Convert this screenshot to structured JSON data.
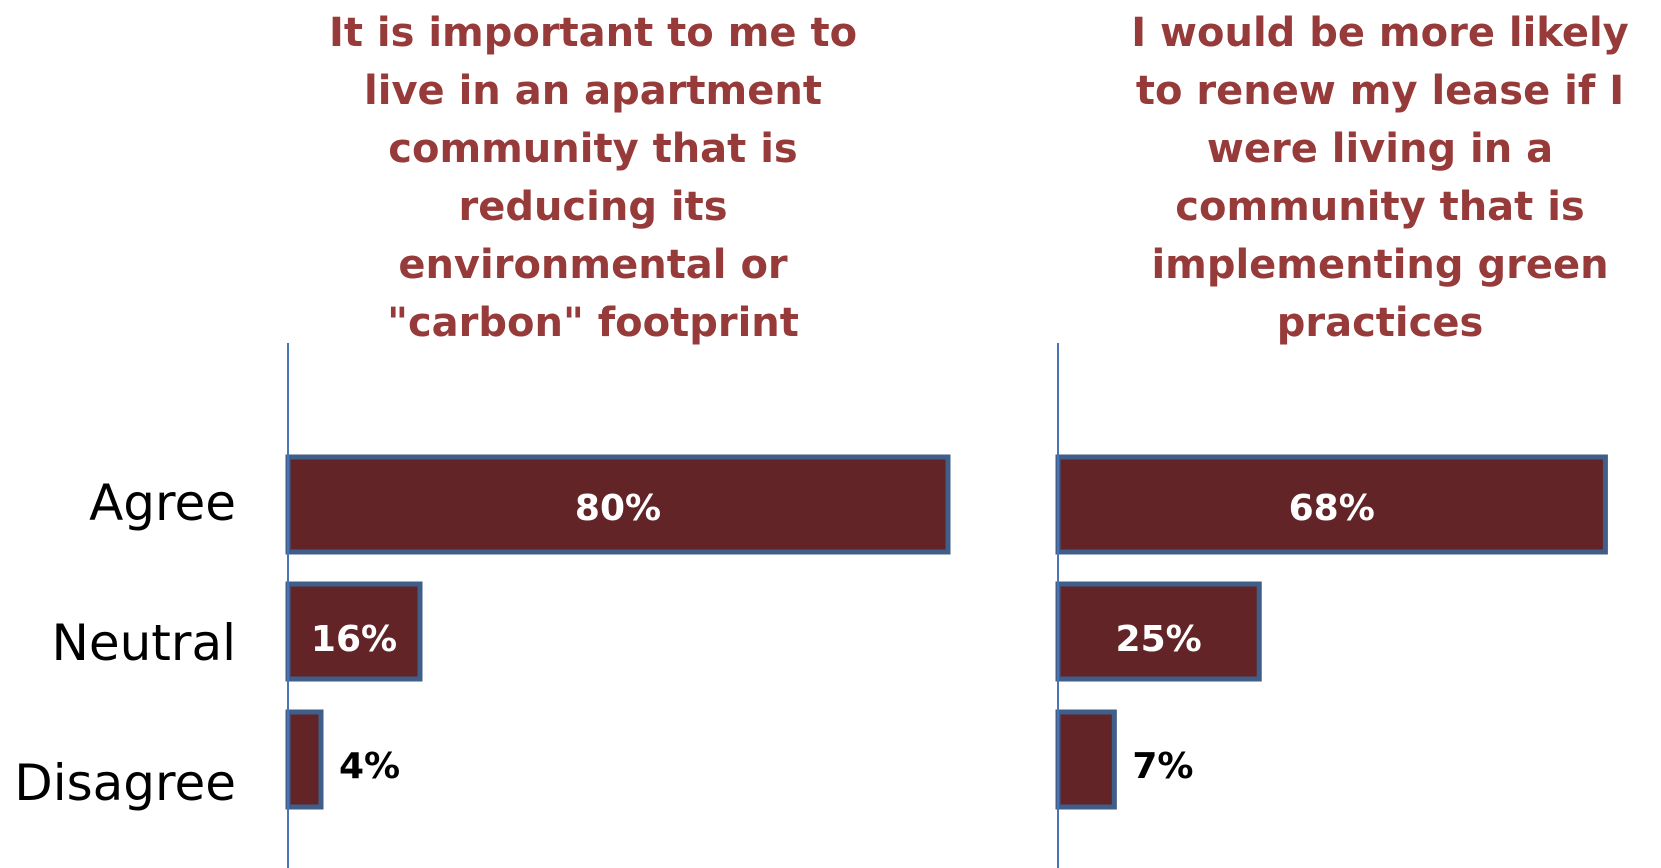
{
  "chart_data": [
    {
      "type": "bar",
      "orientation": "horizontal",
      "title": "It is important to me to live in an apartment community that is reducing its environmental or \"carbon\" footprint",
      "title_lines": [
        "It is important to me to",
        "live in an apartment",
        "community that is",
        "reducing its",
        "environmental or",
        "\"carbon\" footprint"
      ],
      "categories": [
        "Agree",
        "Neutral",
        "Disagree"
      ],
      "values": [
        80,
        16,
        4
      ],
      "labels": [
        "80%",
        "16%",
        "4%"
      ],
      "xlim": [
        0,
        100
      ],
      "grid": false,
      "legend": "none"
    },
    {
      "type": "bar",
      "orientation": "horizontal",
      "title": "I would be more likely to renew my lease if I were living in a community that is implementing green practices",
      "title_lines": [
        "I would be more likely",
        "to renew my lease if I",
        "were living in a",
        "community that is",
        "implementing green",
        "practices"
      ],
      "categories": [
        "Agree",
        "Neutral",
        "Disagree"
      ],
      "values": [
        68,
        25,
        7
      ],
      "labels": [
        "68%",
        "25%",
        "7%"
      ],
      "xlim": [
        0,
        100
      ],
      "grid": false,
      "legend": "none"
    }
  ],
  "colors": {
    "bar_fill": "#632427",
    "bar_border": "#3f5e8a",
    "axis": "#4a74b4",
    "title": "#963a3a",
    "label_inside": "#ffffff",
    "label_outside": "#000000"
  }
}
